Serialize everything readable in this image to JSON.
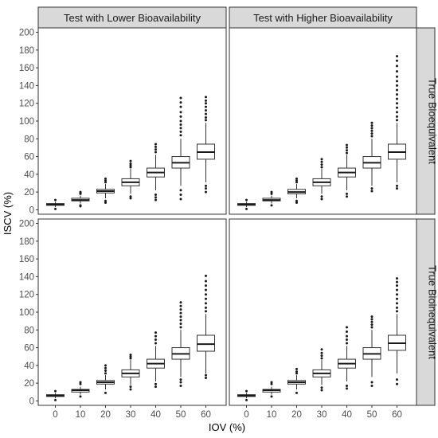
{
  "chart_data": {
    "type": "boxplot",
    "ylabel": "ISCV (%)",
    "xlabel": "IOV (%)",
    "x_categories": [
      "0",
      "10",
      "20",
      "30",
      "40",
      "50",
      "60"
    ],
    "y_ticks": [
      0,
      20,
      40,
      60,
      80,
      100,
      120,
      140,
      160,
      180,
      200
    ],
    "ylim": [
      -5,
      205
    ],
    "grid": true,
    "facet_columns": [
      "Test with Lower Bioavailability",
      "Test with Higher Bioavailability"
    ],
    "facet_rows": [
      "True Bioequivalent",
      "True Bioinequivalent"
    ],
    "panels": [
      {
        "column": "Test with Lower Bioavailability",
        "row": "True Bioequivalent",
        "boxes": [
          {
            "x": "0",
            "q1": 5,
            "median": 6,
            "q3": 7,
            "whisker_low": 3,
            "whisker_high": 9,
            "outliers": [
              1,
              11
            ]
          },
          {
            "x": "10",
            "q1": 10,
            "median": 11,
            "q3": 13,
            "whisker_low": 7,
            "whisker_high": 16,
            "outliers": [
              4,
              5,
              18,
              19,
              20
            ]
          },
          {
            "x": "20",
            "q1": 19,
            "median": 21,
            "q3": 23,
            "whisker_low": 13,
            "whisker_high": 29,
            "outliers": [
              8,
              10,
              31,
              33,
              35
            ]
          },
          {
            "x": "30",
            "q1": 27,
            "median": 31,
            "q3": 35,
            "whisker_low": 18,
            "whisker_high": 46,
            "outliers": [
              13,
              15,
              48,
              50,
              52,
              55
            ]
          },
          {
            "x": "40",
            "q1": 37,
            "median": 42,
            "q3": 47,
            "whisker_low": 22,
            "whisker_high": 62,
            "outliers": [
              11,
              14,
              17,
              65,
              68,
              71,
              74
            ]
          },
          {
            "x": "50",
            "q1": 47,
            "median": 53,
            "q3": 60,
            "whisker_low": 27,
            "whisker_high": 80,
            "outliers": [
              12,
              17,
              22,
              84,
              88,
              92,
              96,
              100,
              105,
              110,
              116,
              121,
              126
            ]
          },
          {
            "x": "60",
            "q1": 57,
            "median": 65,
            "q3": 74,
            "whisker_low": 31,
            "whisker_high": 98,
            "outliers": [
              20,
              24,
              27,
              101,
              104,
              108,
              112,
              116,
              120,
              123,
              127
            ]
          }
        ]
      },
      {
        "column": "Test with Higher Bioavailability",
        "row": "True Bioequivalent",
        "boxes": [
          {
            "x": "0",
            "q1": 5,
            "median": 6,
            "q3": 7,
            "whisker_low": 3,
            "whisker_high": 9,
            "outliers": [
              1,
              11
            ]
          },
          {
            "x": "10",
            "q1": 10,
            "median": 11,
            "q3": 13,
            "whisker_low": 7,
            "whisker_high": 16,
            "outliers": [
              5,
              18,
              20
            ]
          },
          {
            "x": "20",
            "q1": 18,
            "median": 20,
            "q3": 23,
            "whisker_low": 13,
            "whisker_high": 29,
            "outliers": [
              8,
              10,
              31,
              33,
              35
            ]
          },
          {
            "x": "30",
            "q1": 27,
            "median": 31,
            "q3": 35,
            "whisker_low": 18,
            "whisker_high": 46,
            "outliers": [
              12,
              15,
              48,
              51,
              54,
              57
            ]
          },
          {
            "x": "40",
            "q1": 37,
            "median": 42,
            "q3": 47,
            "whisker_low": 22,
            "whisker_high": 62,
            "outliers": [
              15,
              18,
              64,
              67,
              70,
              73
            ]
          },
          {
            "x": "50",
            "q1": 47,
            "median": 53,
            "q3": 60,
            "whisker_low": 27,
            "whisker_high": 80,
            "outliers": [
              21,
              24,
              83,
              86,
              89,
              92,
              95,
              98
            ]
          },
          {
            "x": "60",
            "q1": 57,
            "median": 65,
            "q3": 74,
            "whisker_low": 31,
            "whisker_high": 98,
            "outliers": [
              24,
              27,
              101,
              105,
              110,
              115,
              120,
              125,
              130,
              135,
              140,
              145,
              150,
              156,
              162,
              168,
              173
            ]
          }
        ]
      },
      {
        "column": "Test with Lower Bioavailability",
        "row": "True Bioinequivalent",
        "boxes": [
          {
            "x": "0",
            "q1": 5,
            "median": 6,
            "q3": 7,
            "whisker_low": 3,
            "whisker_high": 9,
            "outliers": [
              1,
              11
            ]
          },
          {
            "x": "10",
            "q1": 10,
            "median": 12,
            "q3": 13,
            "whisker_low": 7,
            "whisker_high": 16,
            "outliers": [
              5,
              19,
              21
            ]
          },
          {
            "x": "20",
            "q1": 19,
            "median": 21,
            "q3": 23,
            "whisker_low": 13,
            "whisker_high": 29,
            "outliers": [
              9,
              31,
              34,
              37,
              40
            ]
          },
          {
            "x": "30",
            "q1": 27,
            "median": 31,
            "q3": 35,
            "whisker_low": 18,
            "whisker_high": 46,
            "outliers": [
              13,
              16,
              48,
              50,
              52
            ]
          },
          {
            "x": "40",
            "q1": 37,
            "median": 42,
            "q3": 47,
            "whisker_low": 22,
            "whisker_high": 62,
            "outliers": [
              16,
              19,
              65,
              69,
              73,
              77
            ]
          },
          {
            "x": "50",
            "q1": 47,
            "median": 53,
            "q3": 60,
            "whisker_low": 27,
            "whisker_high": 80,
            "outliers": [
              17,
              21,
              24,
              83,
              87,
              91,
              95,
              99,
              103,
              107,
              111
            ]
          },
          {
            "x": "60",
            "q1": 56,
            "median": 64,
            "q3": 74,
            "whisker_low": 31,
            "whisker_high": 98,
            "outliers": [
              26,
              29,
              101,
              105,
              110,
              115,
              120,
              125,
              130,
              135,
              141
            ]
          }
        ]
      },
      {
        "column": "Test with Higher Bioavailability",
        "row": "True Bioinequivalent",
        "boxes": [
          {
            "x": "0",
            "q1": 5,
            "median": 6,
            "q3": 7,
            "whisker_low": 3,
            "whisker_high": 9,
            "outliers": [
              1,
              11
            ]
          },
          {
            "x": "10",
            "q1": 10,
            "median": 12,
            "q3": 13,
            "whisker_low": 7,
            "whisker_high": 16,
            "outliers": [
              5,
              19,
              21
            ]
          },
          {
            "x": "20",
            "q1": 19,
            "median": 21,
            "q3": 23,
            "whisker_low": 13,
            "whisker_high": 29,
            "outliers": [
              9,
              31,
              33,
              36
            ]
          },
          {
            "x": "30",
            "q1": 27,
            "median": 31,
            "q3": 35,
            "whisker_low": 18,
            "whisker_high": 46,
            "outliers": [
              12,
              15,
              48,
              51,
              54,
              58
            ]
          },
          {
            "x": "40",
            "q1": 37,
            "median": 42,
            "q3": 47,
            "whisker_low": 22,
            "whisker_high": 62,
            "outliers": [
              14,
              17,
              65,
              69,
              73,
              78,
              83
            ]
          },
          {
            "x": "50",
            "q1": 47,
            "median": 53,
            "q3": 60,
            "whisker_low": 27,
            "whisker_high": 80,
            "outliers": [
              17,
              21,
              83,
              86,
              89,
              92,
              95
            ]
          },
          {
            "x": "60",
            "q1": 57,
            "median": 65,
            "q3": 74,
            "whisker_low": 31,
            "whisker_high": 98,
            "outliers": [
              19,
              24,
              101,
              105,
              110,
              115,
              120,
              125,
              130,
              134,
              138
            ]
          }
        ]
      }
    ]
  }
}
